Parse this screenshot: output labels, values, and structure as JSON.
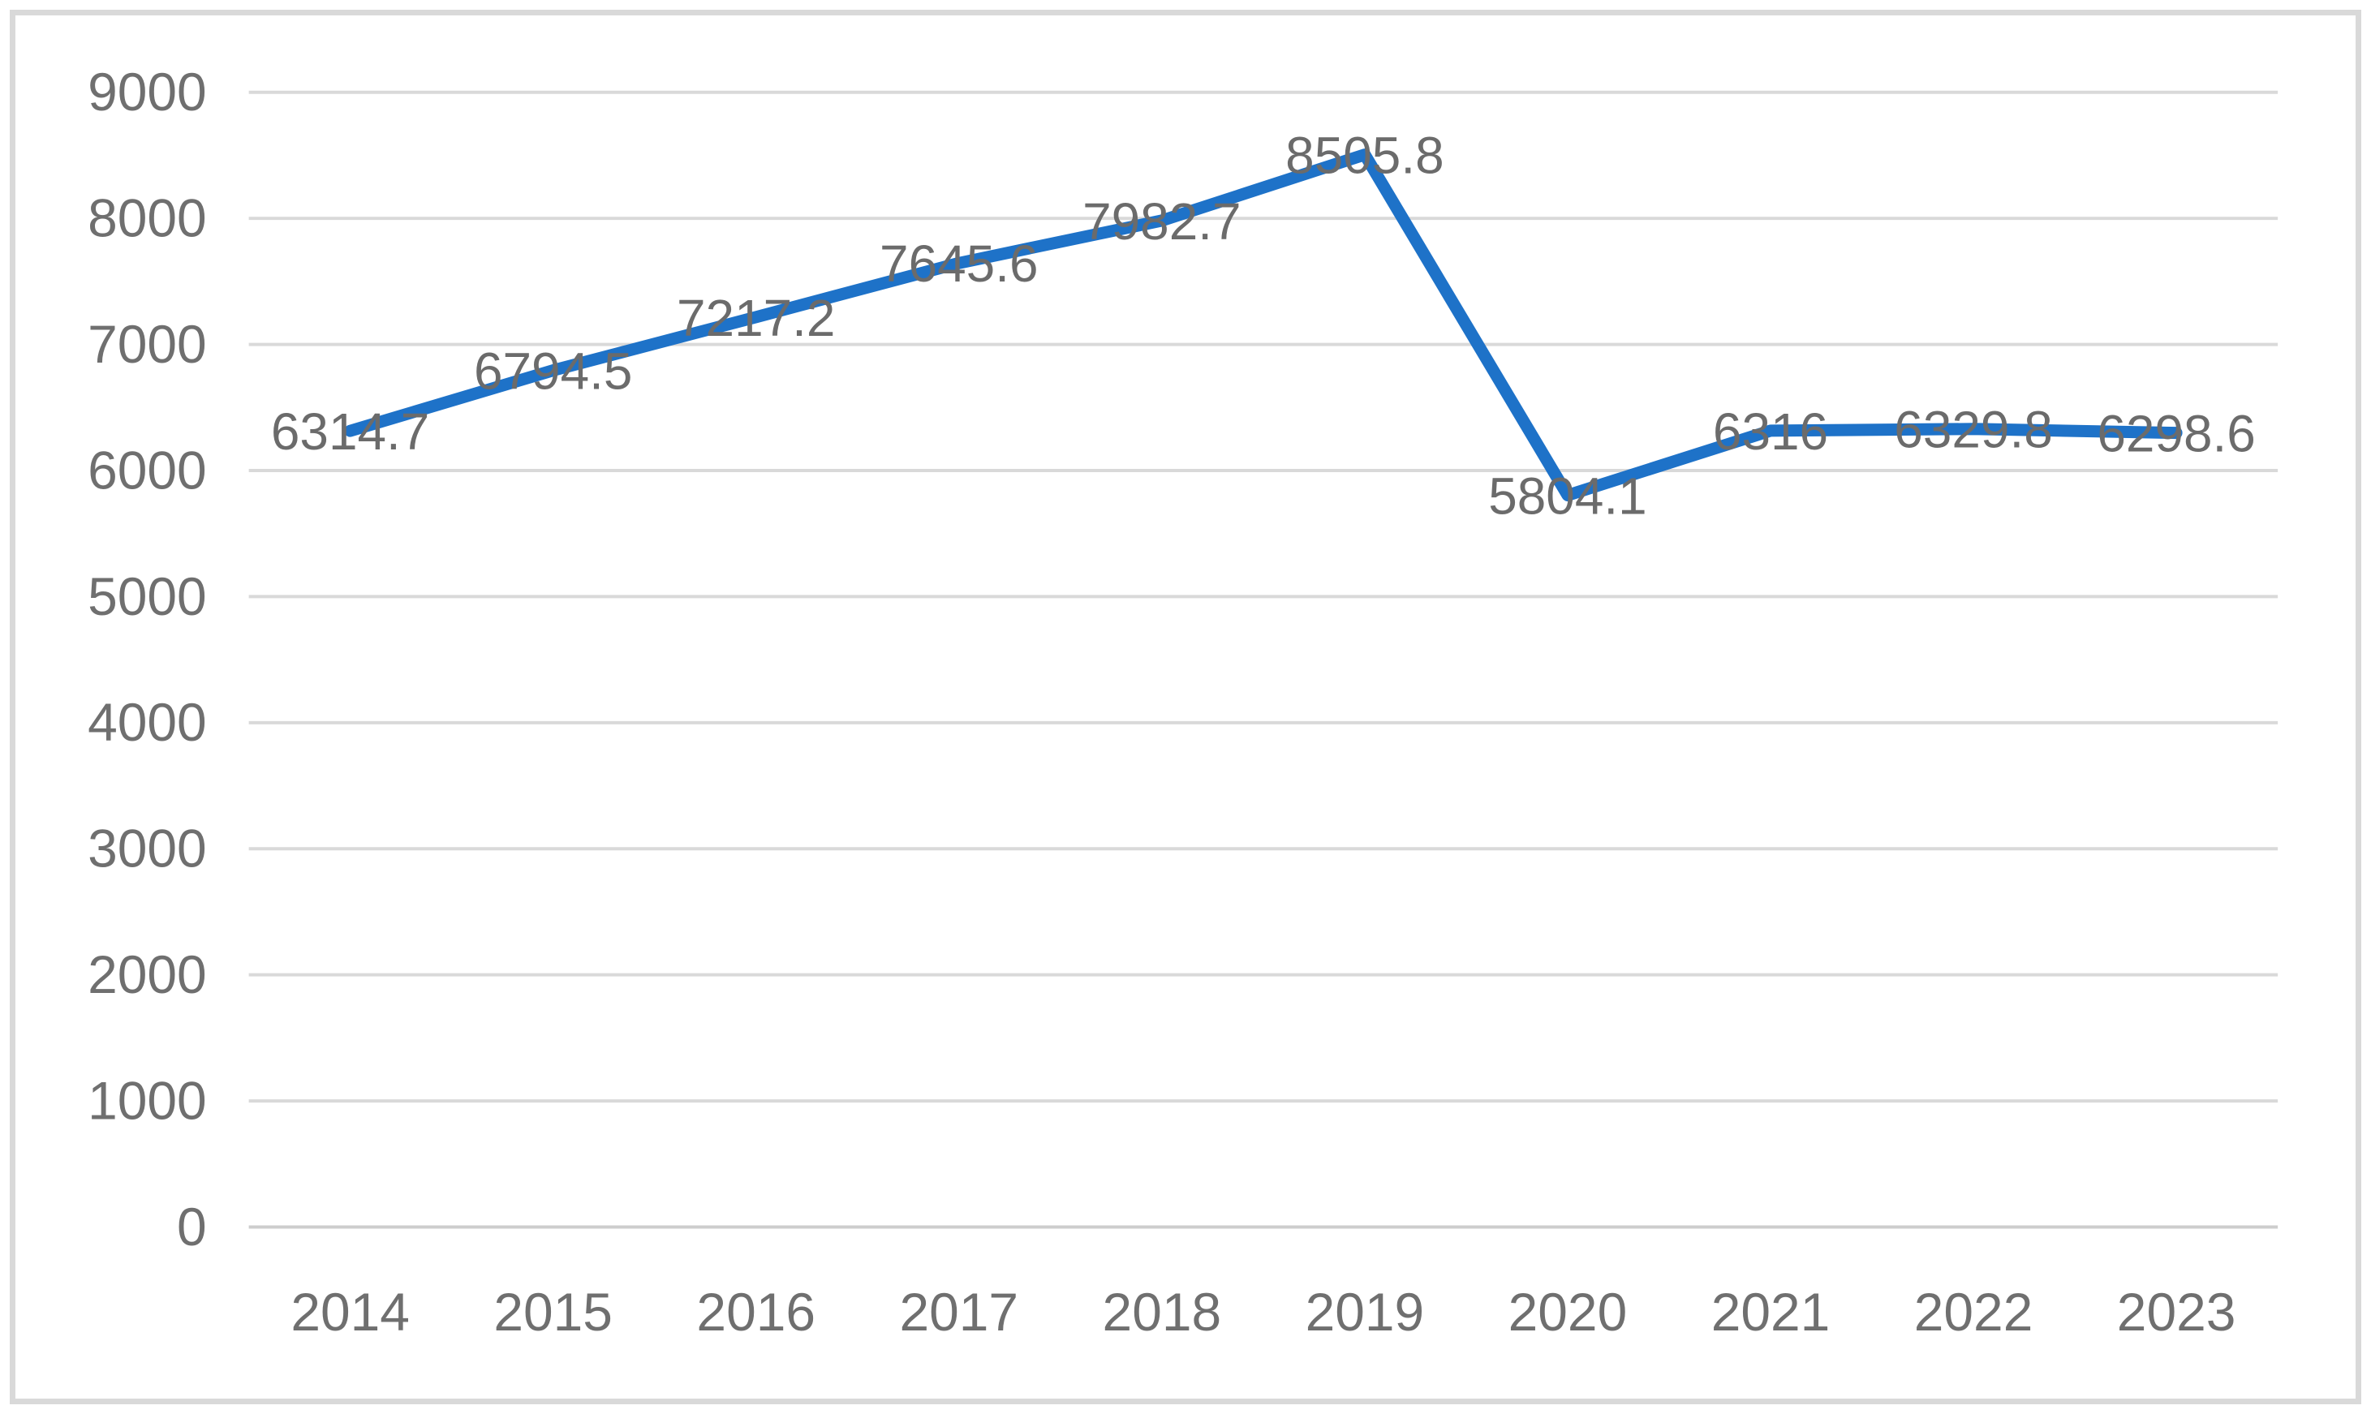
{
  "colors": {
    "line": "#1e72c8",
    "gridline": "#d9d9d9",
    "axis_line": "#cdcdcd",
    "tick_text": "#6f6f6f",
    "data_label_text": "#6b6b6b",
    "frame_border": "#d9d9d9",
    "background": "#ffffff"
  },
  "chart_data": {
    "type": "line",
    "title": "",
    "xlabel": "",
    "ylabel": "",
    "categories": [
      "2014",
      "2015",
      "2016",
      "2017",
      "2018",
      "2019",
      "2020",
      "2021",
      "2022",
      "2023"
    ],
    "values": [
      6314.7,
      6794.5,
      7217.2,
      7645.6,
      7982.7,
      8505.8,
      5804.1,
      6316,
      6329.8,
      6298.6
    ],
    "data_labels": [
      "6314.7",
      "6794.5",
      "7217.2",
      "7645.6",
      "7982.7",
      "8505.8",
      "5804.1",
      "6316",
      "6329.8",
      "6298.6"
    ],
    "data_labels_visible": true,
    "data_label_position": "center",
    "ylim": [
      0,
      9000
    ],
    "yticks": [
      0,
      1000,
      2000,
      3000,
      4000,
      5000,
      6000,
      7000,
      8000,
      9000
    ],
    "grid": true,
    "legend": "none",
    "markers": false
  }
}
